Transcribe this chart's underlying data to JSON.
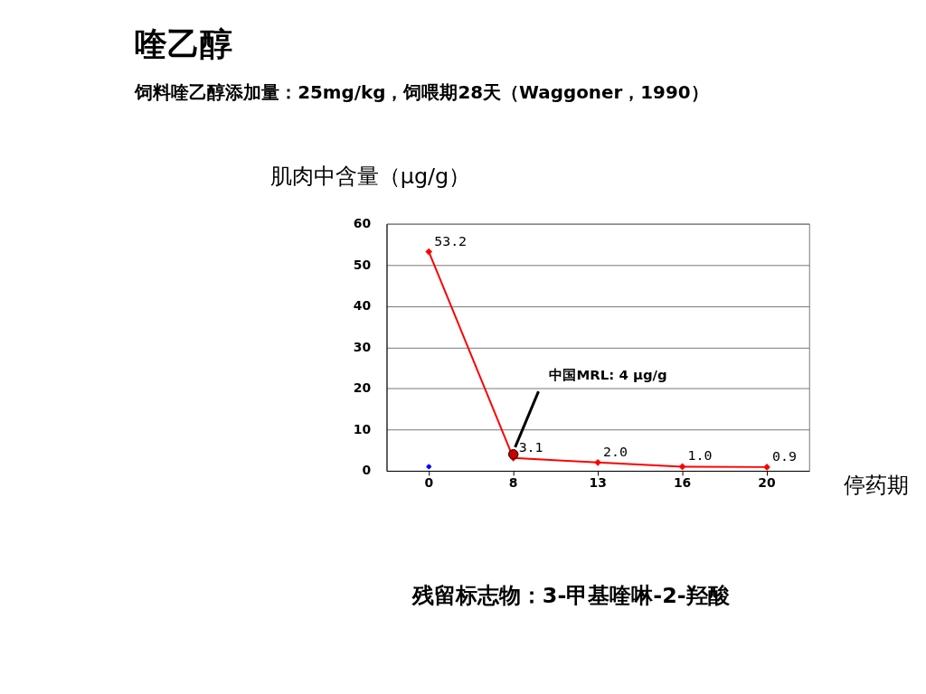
{
  "chart_data": {
    "type": "line",
    "title": "喹乙醇",
    "subtitle": "饲料喹乙醇添加量：25mg/kg，饲喂期28天（Waggoner，1990）",
    "ylabel": "肌肉中含量（μg/g）",
    "xlabel": "停药期",
    "categories": [
      "0",
      "8",
      "13",
      "16",
      "20"
    ],
    "series": [
      {
        "color": "#ff0000",
        "values": [
          53.2,
          3.1,
          2.0,
          1.0,
          0.9
        ],
        "value_labels": [
          "53.2",
          "3.1",
          "2.0",
          "1.0",
          "0.9"
        ],
        "marker": "diamond",
        "line_style": "solid"
      },
      {
        "type": "scatter",
        "x": [
          "8"
        ],
        "color": "#cc0000",
        "values": [
          4
        ],
        "marker": "circle"
      },
      {
        "type": "scatter",
        "x": [
          "0"
        ],
        "color": "#0000ff",
        "values": [
          1
        ],
        "marker": "cross"
      }
    ],
    "ylim": [
      0,
      60
    ],
    "yticks": [
      0,
      10,
      20,
      30,
      40,
      50,
      60
    ],
    "grid": "y",
    "annotations": [
      {
        "text": "中国MRL: 4 μg/g",
        "x": "8",
        "y": 4
      },
      "残留标志物：3-甲基喹啉-2-羟酸"
    ]
  }
}
